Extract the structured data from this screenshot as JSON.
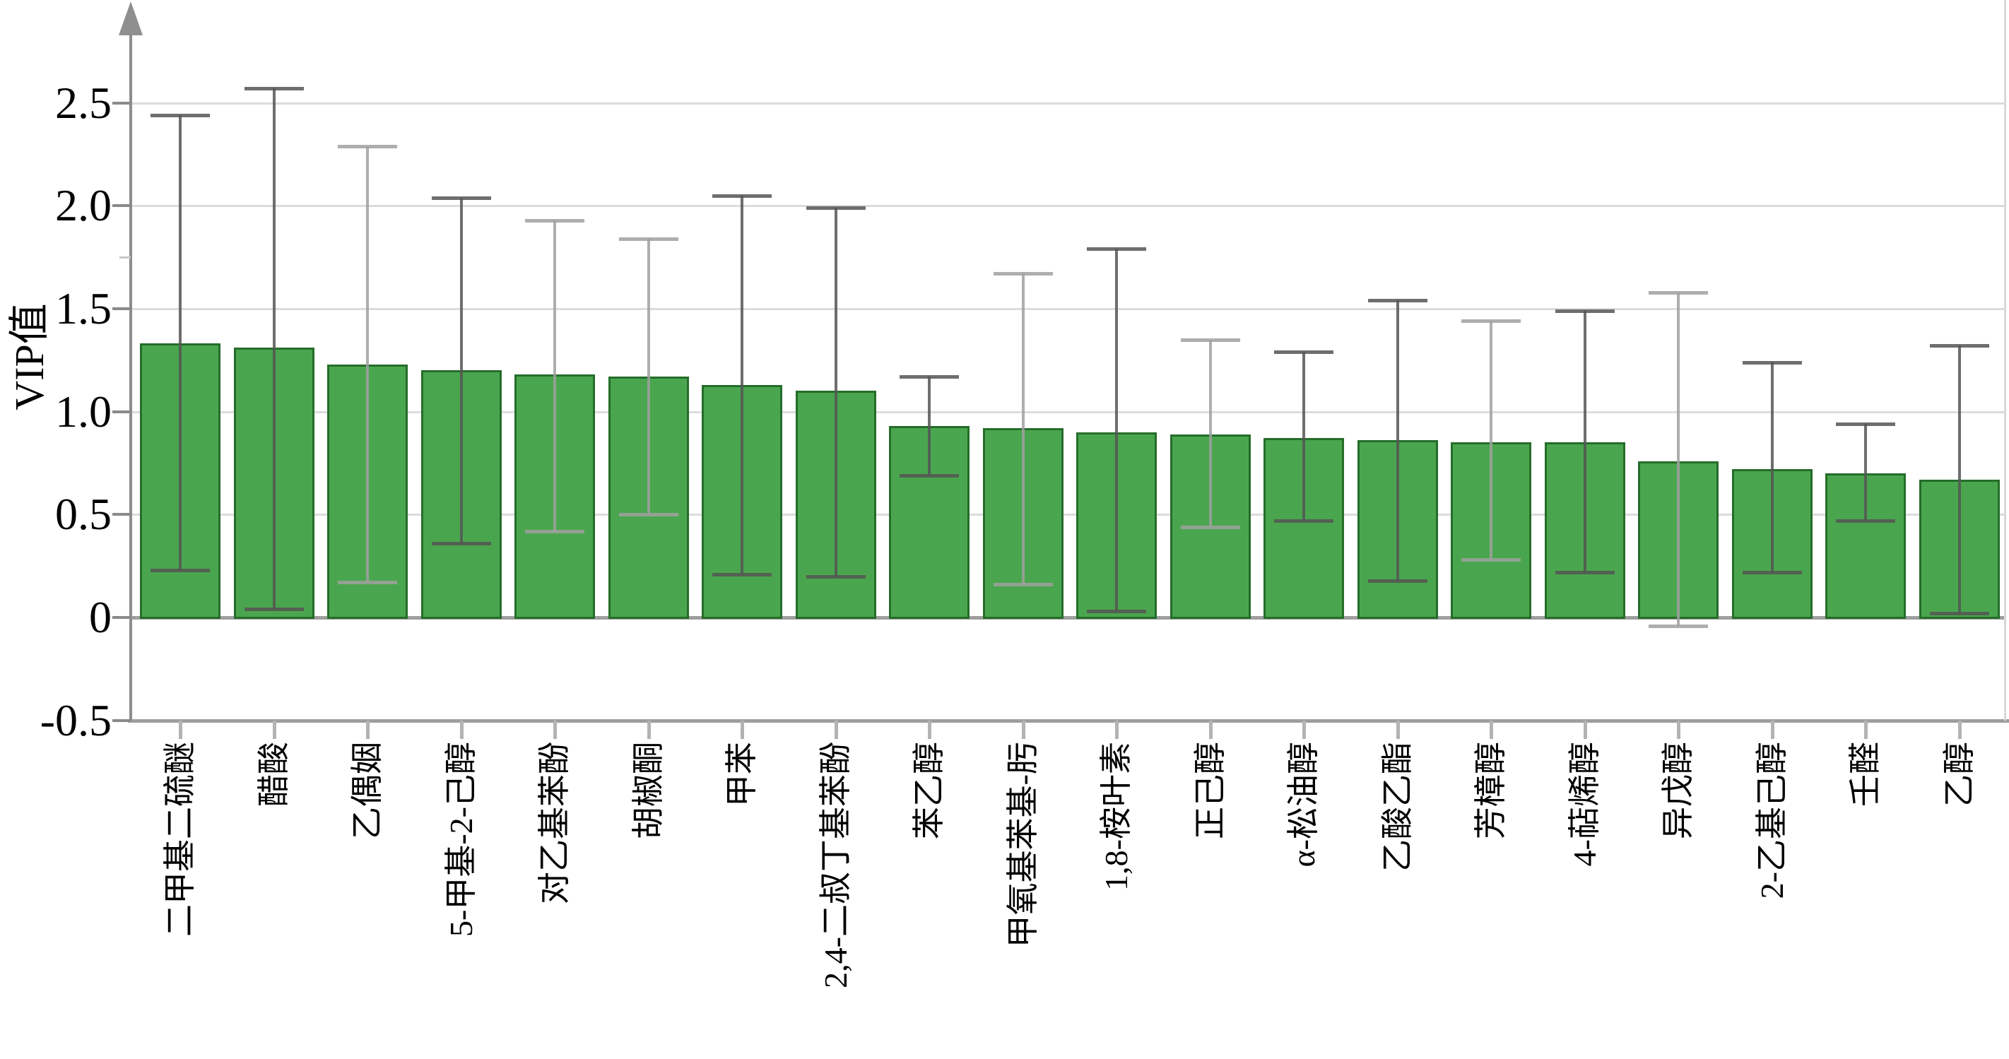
{
  "chart_data": {
    "type": "bar",
    "title": "",
    "xlabel": "",
    "ylabel": "VIP值",
    "ylim": [
      -0.5,
      3.0
    ],
    "yticks": [
      -0.5,
      0,
      0.5,
      1.0,
      1.5,
      2.0,
      2.5
    ],
    "ytick_labels": [
      "-0.5",
      "0",
      "0.5",
      "1.0",
      "1.5",
      "2.0",
      "2.5"
    ],
    "minor_ytick": 1.75,
    "grid": true,
    "legend": "none",
    "categories": [
      "二甲基二硫醚",
      "醋酸",
      "乙偶姻",
      "5-甲基-2-己醇",
      "对乙基苯酚",
      "胡椒酮",
      "甲苯",
      "2,4-二叔丁基苯酚",
      "苯乙醇",
      "甲氧基苯基-肟",
      "1,8-桉叶素",
      "正己醇",
      "α-松油醇",
      "乙酸乙酯",
      "芳樟醇",
      "4-萜烯醇",
      "异戊醇",
      "2-乙基己醇",
      "壬醛",
      "乙醇"
    ],
    "values": [
      1.33,
      1.31,
      1.23,
      1.2,
      1.18,
      1.17,
      1.13,
      1.1,
      0.93,
      0.92,
      0.9,
      0.89,
      0.87,
      0.86,
      0.85,
      0.85,
      0.76,
      0.72,
      0.7,
      0.67
    ],
    "error_low": [
      0.23,
      0.04,
      0.17,
      0.36,
      0.42,
      0.5,
      0.21,
      0.2,
      0.69,
      0.16,
      0.03,
      0.44,
      0.47,
      0.18,
      0.28,
      0.22,
      -0.04,
      0.22,
      0.47,
      0.02
    ],
    "error_high": [
      2.44,
      2.57,
      2.29,
      2.04,
      1.93,
      1.84,
      2.05,
      1.99,
      1.17,
      1.67,
      1.79,
      1.35,
      1.29,
      1.54,
      1.44,
      1.49,
      1.58,
      1.24,
      0.94,
      1.32
    ],
    "error_shade": [
      "dark",
      "dark",
      "light",
      "dark",
      "light",
      "light",
      "dark",
      "dark",
      "dark",
      "light",
      "dark",
      "light",
      "dark",
      "dark",
      "light",
      "dark",
      "light",
      "dark",
      "dark",
      "dark"
    ],
    "colors": {
      "bar_fill": "#4aa64e",
      "bar_edge": "#256d2a",
      "error_dark": "rgba(85,85,85,0.85)",
      "error_light": "rgba(160,160,160,0.85)",
      "gridline": "#dcdcdc",
      "axis": "#8c8c8c",
      "zero_line": "#9e9e9e"
    }
  }
}
